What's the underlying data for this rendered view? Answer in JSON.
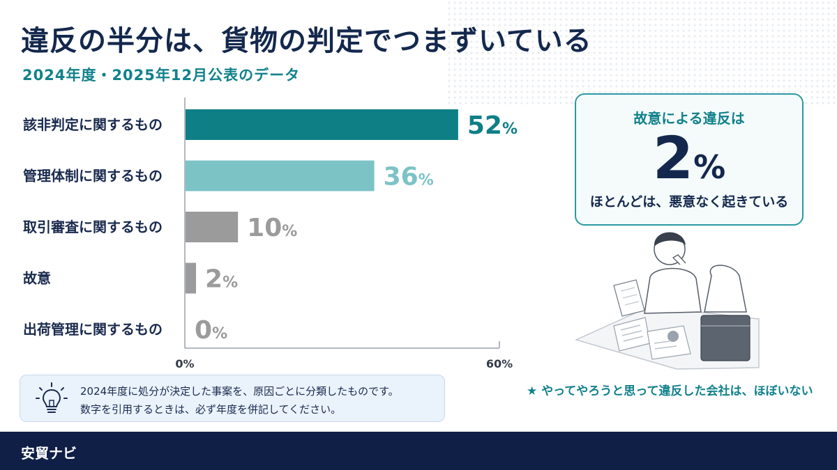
{
  "title": "違反の半分は、貨物の判定でつまずいている",
  "subtitle": "2024年度・2025年12月公表のデータ",
  "chart_data": {
    "type": "bar",
    "orientation": "horizontal",
    "categories": [
      "該非判定に関するもの",
      "管理体制に関するもの",
      "取引審査に関するもの",
      "故意",
      "出荷管理に関するもの"
    ],
    "values": [
      52,
      36,
      10,
      2,
      0
    ],
    "value_labels": [
      "52",
      "36",
      "10",
      "2",
      "0"
    ],
    "unit": "%",
    "xlim": [
      0,
      60
    ],
    "x_ticks": [
      "0%",
      "60%"
    ],
    "colors": [
      "#0f7f86",
      "#7cc3c6",
      "#9b9b9b",
      "#9b9b9b",
      "#9b9b9b"
    ],
    "grid": false
  },
  "callout": {
    "heading": "故意による違反は",
    "big_number": "2",
    "big_unit": "%",
    "footer": "ほとんどは、悪意なく起きている"
  },
  "star_note": "★ やってやろうと思って違反した会社は、ほぼいない",
  "note": {
    "icon": "lightbulb-icon",
    "line1": "2024年度に処分が決定した事案を、原因ごとに分類したものです。",
    "line2": "数字を引用するときは、必ず年度を併記してください。"
  },
  "footer": {
    "brand": "安貿ナビ"
  },
  "colors": {
    "navy": "#14284d",
    "teal": "#11818b",
    "footer_bg": "#0f1f46"
  }
}
